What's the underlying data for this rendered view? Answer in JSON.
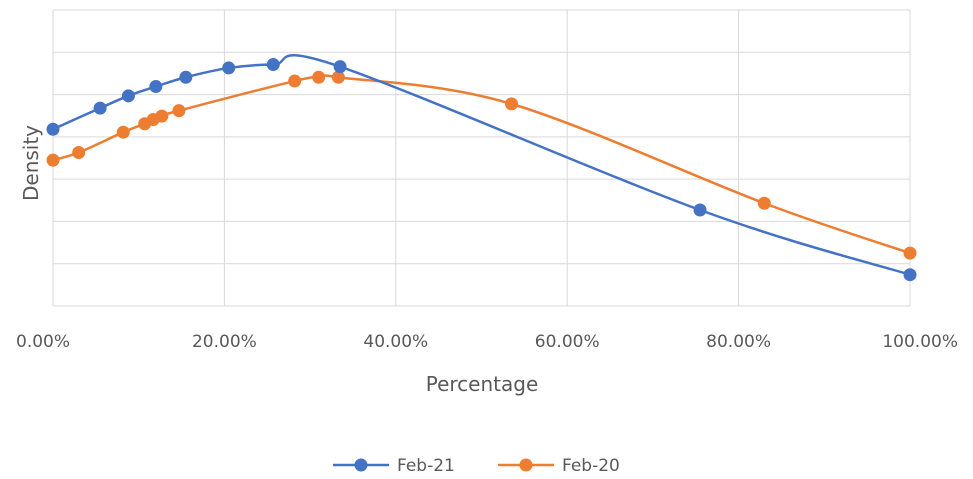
{
  "chart_data": {
    "type": "line",
    "xlabel": "Percentage",
    "ylabel": "Density",
    "xlim": [
      0,
      1
    ],
    "ylim": [
      0,
      7
    ],
    "x_ticks": [
      0,
      0.2,
      0.4,
      0.6,
      0.8,
      1.0
    ],
    "x_tick_labels": [
      "0.00%",
      "20.00%",
      "40.00%",
      "60.00%",
      "80.00%",
      "100.00%"
    ],
    "y_gridlines": [
      0,
      1,
      2,
      3,
      4,
      5,
      6,
      7
    ],
    "grid": true,
    "smooth": true,
    "legend_position": "bottom",
    "series": [
      {
        "name": "Feb-21",
        "color": "#4472C4",
        "points": [
          {
            "x": 0.0,
            "y": 4.18
          },
          {
            "x": 0.055,
            "y": 4.68
          },
          {
            "x": 0.088,
            "y": 4.97
          },
          {
            "x": 0.12,
            "y": 5.19
          },
          {
            "x": 0.155,
            "y": 5.41
          },
          {
            "x": 0.205,
            "y": 5.63
          },
          {
            "x": 0.257,
            "y": 5.71
          },
          {
            "x": 0.335,
            "y": 5.66
          },
          {
            "x": 0.755,
            "y": 2.27
          },
          {
            "x": 1.0,
            "y": 0.74
          }
        ]
      },
      {
        "name": "Feb-20",
        "color": "#ED7D31",
        "points": [
          {
            "x": 0.0,
            "y": 3.45
          },
          {
            "x": 0.03,
            "y": 3.63
          },
          {
            "x": 0.082,
            "y": 4.11
          },
          {
            "x": 0.107,
            "y": 4.31
          },
          {
            "x": 0.117,
            "y": 4.41
          },
          {
            "x": 0.127,
            "y": 4.49
          },
          {
            "x": 0.147,
            "y": 4.62
          },
          {
            "x": 0.282,
            "y": 5.32
          },
          {
            "x": 0.31,
            "y": 5.41
          },
          {
            "x": 0.333,
            "y": 5.41
          },
          {
            "x": 0.535,
            "y": 4.78
          },
          {
            "x": 0.83,
            "y": 2.43
          },
          {
            "x": 1.0,
            "y": 1.25
          }
        ]
      }
    ]
  }
}
